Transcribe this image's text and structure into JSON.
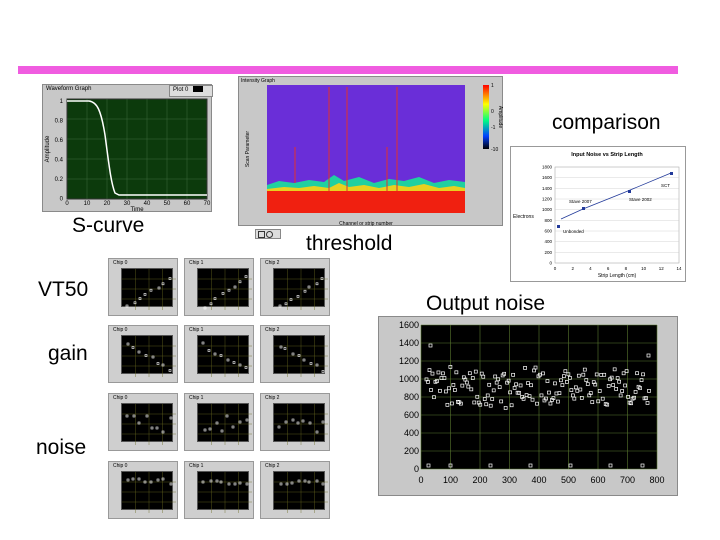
{
  "labels": {
    "comparison": "comparison",
    "s_curve": "S-curve",
    "threshold": "threshold",
    "vt50": "VT50",
    "output_noise": "Output noise",
    "gain": "gain",
    "noise": "noise"
  },
  "waveform_graph": {
    "title": "Waveform Graph",
    "legend": "Plot 0",
    "ylabel": "Amplitude",
    "xlabel": "Time",
    "y_ticks": [
      "1",
      "0.8",
      "0.6",
      "0.4",
      "0.2",
      "0"
    ],
    "x_ticks": [
      "0",
      "10",
      "20",
      "30",
      "40",
      "50",
      "60",
      "70"
    ]
  },
  "intensity_graph": {
    "title": "Intensity Graph",
    "xlabel": "Channel or strip number",
    "ylabel": "Scan Parameter",
    "colorbar_label": "Amplitude",
    "colorbar_ticks": [
      "1",
      "0",
      "-1",
      "-10"
    ]
  },
  "comparison_chart": {
    "title": "Input Noise vs Strip Length",
    "ylabel": "Electrons",
    "xlabel": "Strip Length (cm)",
    "y_ticks": [
      "1800",
      "1600",
      "1400",
      "1200",
      "1000",
      "800",
      "600",
      "400",
      "200",
      "0"
    ],
    "x_ticks": [
      "0",
      "2",
      "4",
      "6",
      "8",
      "10",
      "12",
      "14"
    ],
    "annotations": [
      "SCT",
      "Stave 2007",
      "Stave 2002",
      "Unbonded"
    ]
  },
  "chip_plots": {
    "vt50": [
      "Chip 0",
      "Chip 1",
      "Chip 2"
    ],
    "gain": [
      "Chip 0",
      "Chip 1",
      "Chip 2"
    ],
    "noise1": [
      "Chip 0",
      "Chip 1",
      "Chip 2"
    ],
    "noise2": [
      "Chip 0",
      "Chip 1",
      "Chip 2"
    ]
  },
  "output_noise_chart": {
    "y_ticks": [
      "1600",
      "1400",
      "1200",
      "1000",
      "800",
      "600",
      "400",
      "200",
      "0"
    ],
    "x_ticks": [
      "0",
      "100",
      "200",
      "300",
      "400",
      "500",
      "600",
      "700",
      "800"
    ]
  }
}
